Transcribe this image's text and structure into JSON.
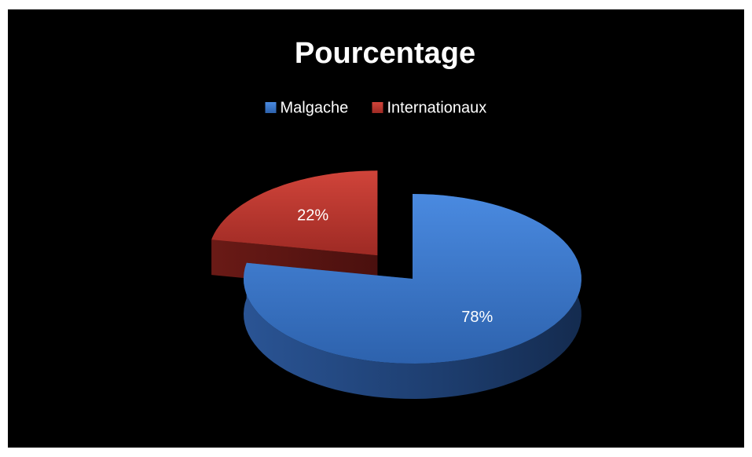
{
  "chart_data": {
    "type": "pie",
    "title": "Pourcentage",
    "categories": [
      "Malgache",
      "Internationaux"
    ],
    "values": [
      78,
      22
    ],
    "value_labels": [
      "78%",
      "22%"
    ],
    "colors": [
      "#3b78c9",
      "#c0372f"
    ],
    "legend": "top",
    "three_d": true
  }
}
